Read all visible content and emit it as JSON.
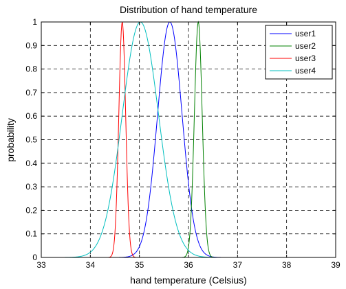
{
  "chart_data": {
    "type": "line",
    "title": "Distribution of hand temperature",
    "xlabel": "hand temperature (Celsius)",
    "ylabel": "probability",
    "xlim": [
      33,
      39
    ],
    "ylim": [
      0,
      1
    ],
    "xticks": [
      "33",
      "34",
      "35",
      "36",
      "37",
      "38",
      "39"
    ],
    "yticks": [
      "0",
      "0.1",
      "0.2",
      "0.3",
      "0.4",
      "0.5",
      "0.6",
      "0.7",
      "0.8",
      "0.9",
      "1"
    ],
    "grid": true,
    "legend_position": "top-right",
    "series": [
      {
        "name": "user1",
        "color": "#0000ff",
        "mean": 35.62,
        "sigma": 0.25,
        "peak": 1.0
      },
      {
        "name": "user2",
        "color": "#008000",
        "mean": 36.2,
        "sigma": 0.08,
        "peak": 1.0
      },
      {
        "name": "user3",
        "color": "#ff0000",
        "mean": 34.65,
        "sigma": 0.07,
        "peak": 1.0
      },
      {
        "name": "user4",
        "color": "#00bfbf",
        "mean": 35.02,
        "sigma": 0.37,
        "peak": 1.0
      }
    ]
  }
}
